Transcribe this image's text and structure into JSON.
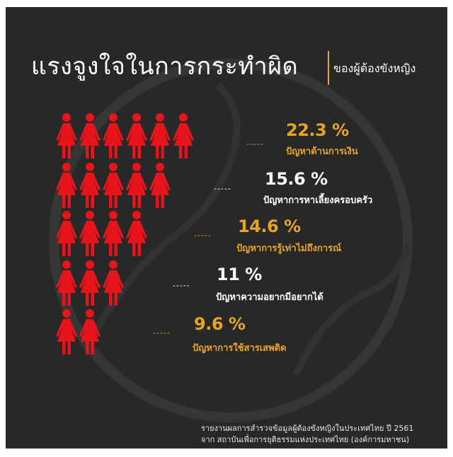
{
  "title": "แรงจูงใจในการกระทำผิด",
  "subtitle": "ของผู้ต้องขังหญิง",
  "source": {
    "line1": "รายงานผลการสำรวจข้อมูลผู้ต้องขังหญิงในประเทศไทย ปี 2561",
    "line2": "จาก สถาบันเพื่อการยุติธรรมแห่งประเทศไทย (องค์การมหาชน)"
  },
  "dash_text": "-----",
  "colors": {
    "background": "#282828",
    "icon": "#e8141c",
    "accent": "#e8a524",
    "text": "#ffffff"
  },
  "icon_name": "woman-figure-icon",
  "chart_data": {
    "type": "pictograph",
    "unit": "%",
    "items": [
      {
        "value": 22.3,
        "value_label": "22.3 %",
        "label": "ปัญหาด้านการเงิน",
        "icon_count": 6,
        "color": "#e8a524"
      },
      {
        "value": 15.6,
        "value_label": "15.6 %",
        "label": "ปัญหาการหาเลี้ยงครอบครัว",
        "icon_count": 5,
        "color": "#ffffff"
      },
      {
        "value": 14.6,
        "value_label": "14.6 %",
        "label": "ปัญหาการรู้เท่าไม่ถึงการณ์",
        "icon_count": 4,
        "color": "#e8a524"
      },
      {
        "value": 11,
        "value_label": "11 %",
        "label": "ปัญหาความอยากมีอยากได้",
        "icon_count": 3,
        "color": "#ffffff"
      },
      {
        "value": 9.6,
        "value_label": "9.6 %",
        "label": "ปัญหาการใช้สารเสพติด",
        "icon_count": 2,
        "color": "#e8a524"
      }
    ]
  }
}
